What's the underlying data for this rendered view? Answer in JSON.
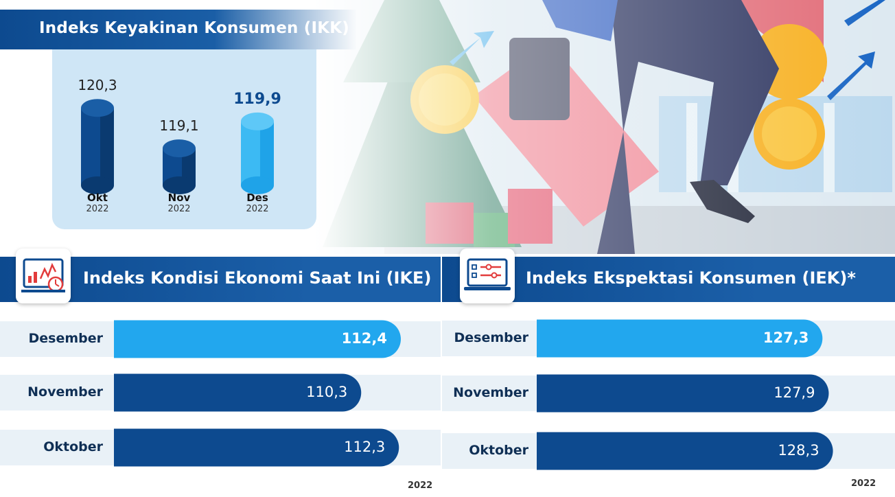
{
  "ikk": {
    "title": "Indeks Keyakinan Konsumen (IKK)"
  },
  "ike": {
    "title": "Indeks Kondisi Ekonomi Saat Ini (IKE)",
    "year": "2022"
  },
  "iek": {
    "title": "Indeks Ekspektasi Konsumen (IEK)*",
    "year": "2022"
  },
  "colors": {
    "dark_blue": "#0d4a8f",
    "light_blue": "#22a7ee",
    "panel": "#cfe6f6"
  },
  "chart_data": [
    {
      "type": "bar",
      "title": "Indeks Keyakinan Konsumen (IKK)",
      "categories": [
        "Okt",
        "Nov",
        "Des"
      ],
      "category_years": [
        "2022",
        "2022",
        "2022"
      ],
      "values": [
        120.3,
        119.1,
        119.9
      ],
      "value_labels": [
        "120,3",
        "119,1",
        "119,9"
      ],
      "highlight_index": 2
    },
    {
      "type": "bar",
      "orientation": "horizontal",
      "title": "Indeks Kondisi Ekonomi Saat Ini (IKE)",
      "categories": [
        "Desember",
        "November",
        "Oktober"
      ],
      "values": [
        112.4,
        110.3,
        112.3
      ],
      "value_labels": [
        "112,4",
        "110,3",
        "112,3"
      ],
      "highlight_index": 0
    },
    {
      "type": "bar",
      "orientation": "horizontal",
      "title": "Indeks Ekspektasi Konsumen (IEK)*",
      "categories": [
        "Desember",
        "November",
        "Oktober"
      ],
      "values": [
        127.3,
        127.9,
        128.3
      ],
      "value_labels": [
        "127,3",
        "127,9",
        "128,3"
      ],
      "highlight_index": 0
    }
  ]
}
